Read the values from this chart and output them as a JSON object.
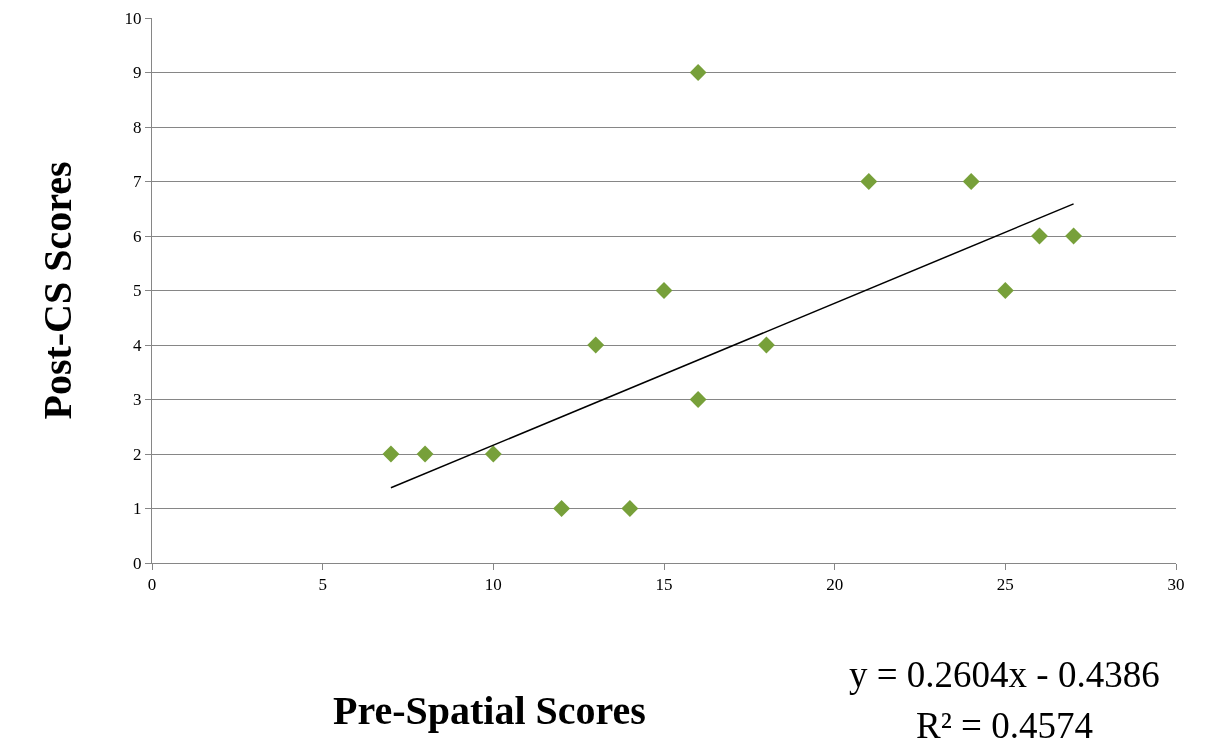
{
  "chart_data": {
    "type": "scatter",
    "xlabel": "Pre-Spatial Scores",
    "ylabel": "Post-CS Scores",
    "xlim": [
      0,
      30
    ],
    "xticks": [
      0,
      5,
      10,
      15,
      20,
      25,
      30
    ],
    "ylim": [
      0,
      10
    ],
    "yticks": [
      0,
      1,
      2,
      3,
      4,
      5,
      6,
      7,
      8,
      9,
      10
    ],
    "grid": "y",
    "legend": false,
    "marker": "diamond",
    "series": [
      {
        "type": "scatter",
        "color": "#77a03a",
        "x": [
          7,
          8,
          10,
          12,
          13,
          14,
          15,
          16,
          16,
          18,
          21,
          24,
          25,
          26,
          27
        ],
        "values": [
          2,
          2,
          2,
          1,
          4,
          1,
          5,
          9,
          3,
          4,
          7,
          7,
          5,
          6,
          6
        ]
      },
      {
        "type": "line",
        "color": "#000000",
        "marker": "none",
        "line_style": "solid",
        "x": [
          7,
          27
        ],
        "values": [
          1.38,
          6.59
        ]
      }
    ],
    "annotations": [
      "y = 0.2604x - 0.4386",
      "R² = 0.4574"
    ]
  }
}
